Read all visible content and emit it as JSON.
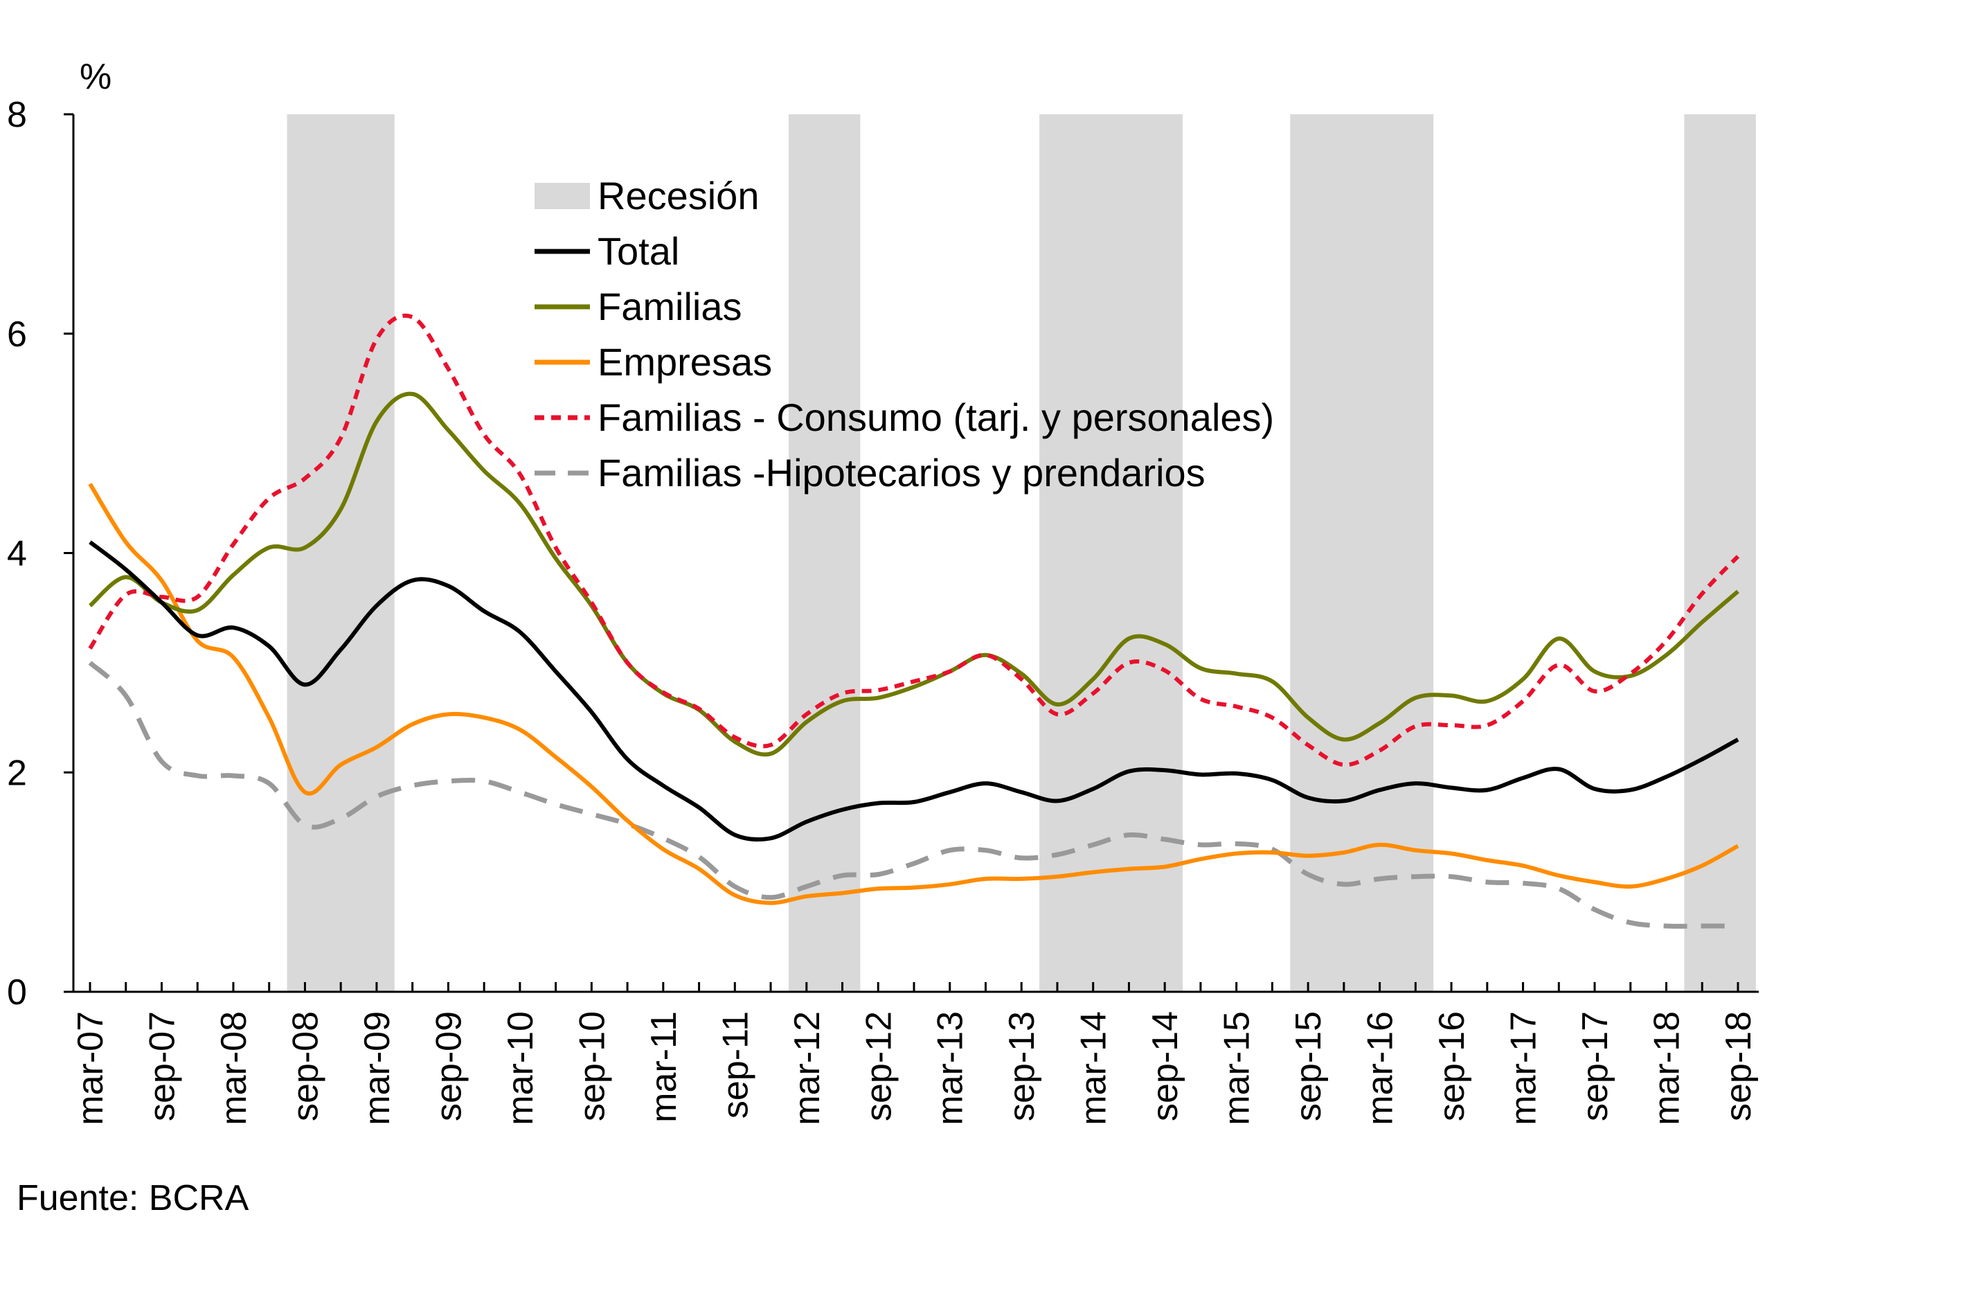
{
  "source_note": "Fuente:  BCRA",
  "chart_data": {
    "type": "line",
    "ylabel": "%",
    "ylim": [
      0,
      8
    ],
    "yticks": [
      "0",
      "2",
      "4",
      "6",
      "8"
    ],
    "categories": [
      "mar-07",
      "jun-07",
      "sep-07",
      "dic-07",
      "mar-08",
      "jun-08",
      "sep-08",
      "dic-08",
      "mar-09",
      "jun-09",
      "sep-09",
      "dic-09",
      "mar-10",
      "jun-10",
      "sep-10",
      "dic-10",
      "mar-11",
      "jun-11",
      "sep-11",
      "dic-11",
      "mar-12",
      "jun-12",
      "sep-12",
      "dic-12",
      "mar-13",
      "jun-13",
      "sep-13",
      "dic-13",
      "mar-14",
      "jun-14",
      "sep-14",
      "dic-14",
      "mar-15",
      "jun-15",
      "sep-15",
      "dic-15",
      "mar-16",
      "jun-16",
      "sep-16",
      "dic-16",
      "mar-17",
      "jun-17",
      "sep-17",
      "dic-17",
      "mar-18",
      "jun-18",
      "sep-18"
    ],
    "tick_labels": [
      "mar-07",
      "sep-07",
      "mar-08",
      "sep-08",
      "mar-09",
      "sep-09",
      "mar-10",
      "sep-10",
      "mar-11",
      "sep-11",
      "mar-12",
      "sep-12",
      "mar-13",
      "sep-13",
      "mar-14",
      "sep-14",
      "mar-15",
      "sep-15",
      "mar-16",
      "sep-16",
      "mar-17",
      "sep-17",
      "mar-18",
      "sep-18"
    ],
    "recessions": [
      [
        5.5,
        8.5
      ],
      [
        19.5,
        21.5
      ],
      [
        26.5,
        30.5
      ],
      [
        33.5,
        37.5
      ],
      [
        44.5,
        46.5
      ]
    ],
    "legend": [
      {
        "label": "Recesión",
        "kind": "band",
        "color": "#d9d9d9"
      },
      {
        "label": "Total",
        "kind": "line",
        "color": "#000000"
      },
      {
        "label": "Familias",
        "kind": "line",
        "color": "#707a00"
      },
      {
        "label": "Empresas",
        "kind": "line",
        "color": "#ff8c00"
      },
      {
        "label": "Familias - Consumo (tarj. y personales)",
        "kind": "dash",
        "color": "#e8112d"
      },
      {
        "label": "Familias -Hipotecarios y prendarios",
        "kind": "dash",
        "color": "#999999"
      }
    ],
    "series": [
      {
        "name": "Total",
        "color": "#000000",
        "dash": "",
        "values": [
          4.1,
          3.85,
          3.55,
          3.25,
          3.32,
          3.15,
          2.8,
          3.12,
          3.52,
          3.75,
          3.7,
          3.47,
          3.28,
          2.92,
          2.55,
          2.12,
          1.88,
          1.68,
          1.43,
          1.4,
          1.55,
          1.66,
          1.72,
          1.73,
          1.82,
          1.9,
          1.82,
          1.74,
          1.85,
          2.01,
          2.02,
          1.98,
          1.99,
          1.93,
          1.77,
          1.74,
          1.84,
          1.9,
          1.86,
          1.84,
          1.95,
          2.03,
          1.85,
          1.84,
          1.96,
          2.12,
          2.3
        ]
      },
      {
        "name": "Familias",
        "color": "#707a00",
        "dash": "",
        "values": [
          3.52,
          3.78,
          3.55,
          3.48,
          3.8,
          4.05,
          4.05,
          4.4,
          5.2,
          5.45,
          5.12,
          4.75,
          4.45,
          3.95,
          3.52,
          3.0,
          2.72,
          2.57,
          2.28,
          2.17,
          2.46,
          2.65,
          2.68,
          2.78,
          2.92,
          3.07,
          2.9,
          2.62,
          2.85,
          3.22,
          3.17,
          2.95,
          2.9,
          2.83,
          2.5,
          2.3,
          2.45,
          2.68,
          2.7,
          2.65,
          2.85,
          3.22,
          2.92,
          2.88,
          3.07,
          3.37,
          3.65
        ]
      },
      {
        "name": "Empresas",
        "color": "#ff8c00",
        "dash": "",
        "values": [
          4.63,
          4.1,
          3.75,
          3.2,
          3.05,
          2.5,
          1.82,
          2.07,
          2.23,
          2.44,
          2.53,
          2.5,
          2.39,
          2.14,
          1.87,
          1.56,
          1.3,
          1.12,
          0.88,
          0.81,
          0.87,
          0.9,
          0.94,
          0.95,
          0.98,
          1.03,
          1.03,
          1.05,
          1.09,
          1.12,
          1.14,
          1.21,
          1.26,
          1.27,
          1.24,
          1.27,
          1.34,
          1.29,
          1.26,
          1.2,
          1.15,
          1.06,
          1.0,
          0.96,
          1.03,
          1.15,
          1.33
        ]
      },
      {
        "name": "Familias - Consumo (tarj. y personales)",
        "color": "#e8112d",
        "dash": "14,10",
        "values": [
          3.13,
          3.62,
          3.6,
          3.6,
          4.08,
          4.5,
          4.68,
          5.05,
          5.95,
          6.15,
          5.68,
          5.08,
          4.72,
          4.05,
          3.55,
          3.0,
          2.73,
          2.58,
          2.32,
          2.25,
          2.53,
          2.72,
          2.75,
          2.83,
          2.92,
          3.07,
          2.85,
          2.53,
          2.72,
          3.0,
          2.93,
          2.67,
          2.6,
          2.5,
          2.25,
          2.07,
          2.2,
          2.42,
          2.43,
          2.43,
          2.65,
          2.98,
          2.74,
          2.9,
          3.2,
          3.63,
          3.97
        ]
      },
      {
        "name": "Familias -Hipotecarios y prendarios",
        "color": "#999999",
        "dash": "34,20",
        "values": [
          3.0,
          2.7,
          2.1,
          1.97,
          1.97,
          1.9,
          1.52,
          1.58,
          1.78,
          1.88,
          1.92,
          1.92,
          1.82,
          1.71,
          1.62,
          1.53,
          1.4,
          1.23,
          0.96,
          0.86,
          0.96,
          1.06,
          1.07,
          1.17,
          1.29,
          1.29,
          1.22,
          1.25,
          1.34,
          1.43,
          1.39,
          1.34,
          1.35,
          1.3,
          1.07,
          0.98,
          1.03,
          1.05,
          1.05,
          1.0,
          0.99,
          0.94,
          0.75,
          0.63,
          0.6,
          0.6,
          0.6
        ]
      }
    ]
  }
}
